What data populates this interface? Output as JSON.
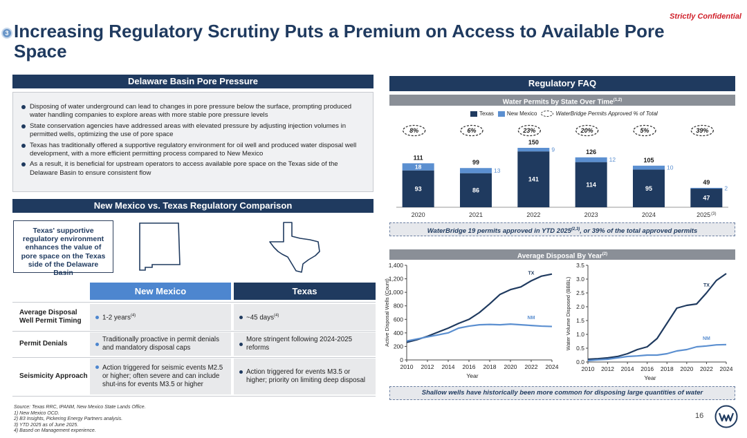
{
  "confidential": "Strictly Confidential",
  "section_number": "3",
  "title": "Increasing Regulatory Scrutiny Puts a Premium on Access to Available Pore Space",
  "left": {
    "pore_header": "Delaware Basin Pore Pressure",
    "bullets": [
      "Disposing of water underground can lead to changes in pore pressure below the surface, prompting produced water handling companies to explore areas with more stable pore pressure levels",
      "State conservation agencies have addressed areas with elevated pressure by adjusting injection volumes in permitted wells, optimizing the use of pore space",
      "Texas has traditionally offered a supportive regulatory environment for oil well and produced water disposal well development, with a more efficient permitting process compared to New Mexico",
      "As a result, it is beneficial for upstream operators to access available pore space on the Texas side of the Delaware Basin to ensure consistent flow"
    ],
    "comparison_header": "New Mexico vs. Texas Regulatory Comparison",
    "callout": "Texas' supportive regulatory environment enhances the value of pore space on the Texas side of the Delaware Basin",
    "col_nm": "New Mexico",
    "col_tx": "Texas",
    "rows": [
      {
        "label": "Average Disposal Well Permit Timing",
        "nm": "1-2 years",
        "nm_sup": "(4)",
        "tx": "~45 days",
        "tx_sup": "(4)"
      },
      {
        "label": "Permit Denials",
        "nm": "Traditionally proactive in permit denials and mandatory disposal caps",
        "nm_sup": "",
        "tx": "More stringent following 2024-2025 reforms",
        "tx_sup": ""
      },
      {
        "label": "Seismicity Approach",
        "nm": "Action triggered for seismic events M2.5 or higher; often severe and can include shut-ins for events M3.5 or higher",
        "nm_sup": "",
        "tx": "Action triggered for events M3.5 or higher; priority on limiting deep disposal",
        "tx_sup": ""
      }
    ]
  },
  "right": {
    "faq_header": "Regulatory FAQ",
    "permits_header": "Water Permits by State Over Time",
    "permits_header_sup": "(1,2)",
    "legend_texas": "Texas",
    "legend_nm": "New Mexico",
    "legend_wb": "WaterBridge Permits Approved % of Total",
    "permits_note_a": "WaterBridge 19 permits approved in YTD 2025",
    "permits_note_sup": "(2,3)",
    "permits_note_b": ", or 39% of the total approved permits",
    "disposal_header": "Average Disposal By Year",
    "disposal_header_sup": "(2)",
    "disposal_note": "Shallow wells have historically been more common for disposing large quantities of water"
  },
  "colors": {
    "navy": "#1f3a5f",
    "light_blue": "#5b8fd0",
    "grey_header": "#8a8f97",
    "red": "#d0202a"
  },
  "chart_data": [
    {
      "type": "bar",
      "stacked": true,
      "categories": [
        "2020",
        "2021",
        "2022",
        "2023",
        "2024",
        "2025"
      ],
      "category_sup": [
        "",
        "",
        "",
        "",
        "",
        "(3)"
      ],
      "series": [
        {
          "name": "Texas",
          "values": [
            93,
            86,
            141,
            114,
            95,
            47
          ]
        },
        {
          "name": "New Mexico",
          "values": [
            18,
            13,
            9,
            12,
            10,
            2
          ]
        }
      ],
      "totals": [
        111,
        99,
        150,
        126,
        105,
        49
      ],
      "waterbridge_pct": [
        "8%",
        "6%",
        "23%",
        "20%",
        "5%",
        "39%"
      ]
    },
    {
      "type": "line",
      "xlabel": "Year",
      "ylabel": "Active Disposal Wells (Count)",
      "ylim": [
        0,
        1400
      ],
      "yticks": [
        "0",
        "200",
        "400",
        "600",
        "800",
        "1,000",
        "1,200",
        "1,400"
      ],
      "xticks": [
        "2010",
        "2012",
        "2014",
        "2016",
        "2018",
        "2020",
        "2022",
        "2024"
      ],
      "x": [
        2010,
        2011,
        2012,
        2013,
        2014,
        2015,
        2016,
        2017,
        2018,
        2019,
        2020,
        2021,
        2022,
        2023,
        2024
      ],
      "series": [
        {
          "name": "TX",
          "values": [
            260,
            300,
            350,
            410,
            470,
            540,
            600,
            700,
            830,
            970,
            1040,
            1080,
            1170,
            1240,
            1270
          ]
        },
        {
          "name": "NM",
          "values": [
            280,
            310,
            340,
            370,
            400,
            470,
            500,
            520,
            525,
            520,
            530,
            520,
            510,
            500,
            495
          ]
        }
      ]
    },
    {
      "type": "line",
      "xlabel": "Year",
      "ylabel": "Water Volume Disposed (BBBL)",
      "ylim": [
        0,
        3.5
      ],
      "yticks": [
        "0.0",
        "0.5",
        "1.0",
        "1.5",
        "2.0",
        "2.5",
        "3.0",
        "3.5"
      ],
      "xticks": [
        "2010",
        "2012",
        "2014",
        "2016",
        "2018",
        "2020",
        "2022",
        "2024"
      ],
      "x": [
        2010,
        2011,
        2012,
        2013,
        2014,
        2015,
        2016,
        2017,
        2018,
        2019,
        2020,
        2021,
        2022,
        2023,
        2024
      ],
      "series": [
        {
          "name": "TX",
          "values": [
            0.1,
            0.12,
            0.15,
            0.2,
            0.3,
            0.45,
            0.55,
            0.85,
            1.4,
            1.95,
            2.05,
            2.1,
            2.5,
            2.95,
            3.2
          ]
        },
        {
          "name": "NM",
          "values": [
            0.05,
            0.08,
            0.1,
            0.15,
            0.2,
            0.22,
            0.25,
            0.25,
            0.3,
            0.4,
            0.45,
            0.55,
            0.58,
            0.62,
            0.63
          ]
        }
      ]
    }
  ],
  "footnotes": [
    "Source: Texas RRC, IPANM, New Mexico State Lands Office.",
    "1)    New Mexico OCD.",
    "2)    B3 Insights, Pickering Energy Partners analysis.",
    "3)    YTD 2025 as of June 2025.",
    "4)    Based on Management experience."
  ],
  "page_number": "16"
}
